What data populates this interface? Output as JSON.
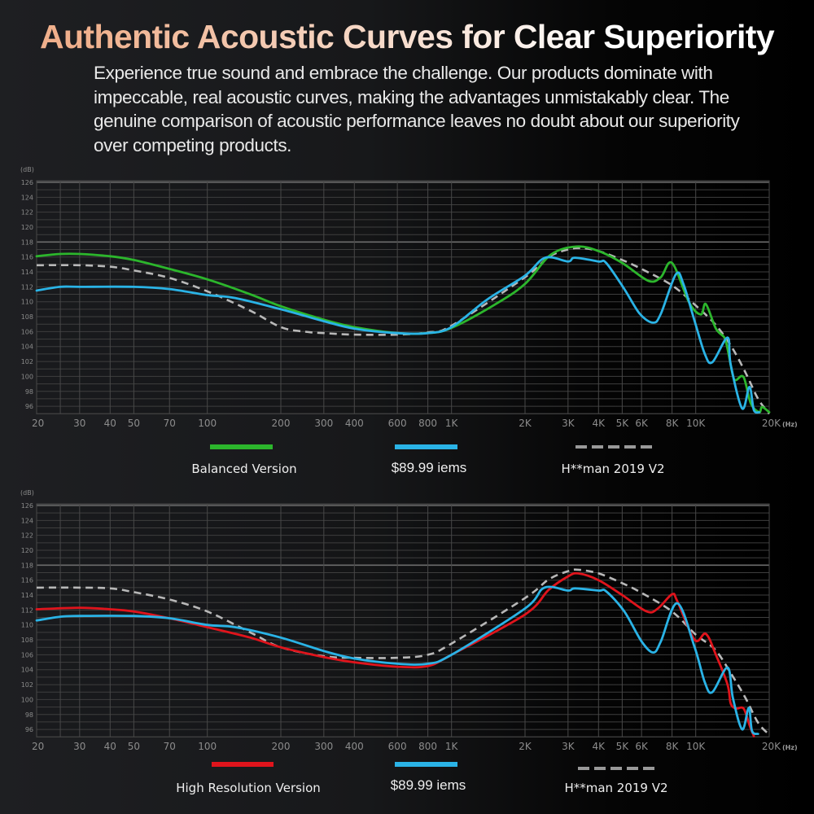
{
  "header": {
    "title": "Authentic Acoustic Curves for Clear Superiority",
    "description": "Experience true sound and embrace the challenge. Our products dominate with impeccable, real acoustic curves, making the advantages unmistakably clear. The genuine comparison of acoustic performance leaves no doubt about our superiority over competing products."
  },
  "chart_data": [
    {
      "type": "line",
      "xscale": "log",
      "xlim": [
        20,
        20000
      ],
      "ylim": [
        95,
        126
      ],
      "grid": true,
      "legend": "bottom",
      "ylabel": "(dB)",
      "xlabel": "(Hz)",
      "yticks": [
        "96",
        "98",
        "100",
        "102",
        "104",
        "106",
        "108",
        "110",
        "112",
        "114",
        "116",
        "118",
        "120",
        "122",
        "124",
        "126"
      ],
      "xticks": [
        {
          "v": 20,
          "l": "20"
        },
        {
          "v": 30,
          "l": "30"
        },
        {
          "v": 40,
          "l": "40"
        },
        {
          "v": 50,
          "l": "50"
        },
        {
          "v": 70,
          "l": "70"
        },
        {
          "v": 100,
          "l": "100"
        },
        {
          "v": 200,
          "l": "200"
        },
        {
          "v": 300,
          "l": "300"
        },
        {
          "v": 400,
          "l": "400"
        },
        {
          "v": 600,
          "l": "600"
        },
        {
          "v": 800,
          "l": "800"
        },
        {
          "v": 1000,
          "l": "1K"
        },
        {
          "v": 2000,
          "l": "2K"
        },
        {
          "v": 3000,
          "l": "3K"
        },
        {
          "v": 4000,
          "l": "4K"
        },
        {
          "v": 5000,
          "l": "5K"
        },
        {
          "v": 6000,
          "l": "6K"
        },
        {
          "v": 8000,
          "l": "8K"
        },
        {
          "v": 10000,
          "l": "10K"
        },
        {
          "v": 20000,
          "l": "20K"
        }
      ],
      "series": [
        {
          "name": "Balanced Version",
          "color": "#2cb62c",
          "dash": false,
          "x": [
            20,
            25,
            30,
            40,
            50,
            70,
            100,
            150,
            200,
            300,
            400,
            600,
            800,
            1000,
            1500,
            2000,
            2550,
            3250,
            4000,
            5000,
            6400,
            7200,
            8000,
            9400,
            10500,
            11000,
            12100,
            13100,
            13500,
            14200,
            14600,
            15700,
            16800,
            18200,
            18700,
            20000
          ],
          "y": [
            116.1,
            116.4,
            116.4,
            116.1,
            115.6,
            114.4,
            113.0,
            111.0,
            109.4,
            107.6,
            106.6,
            105.8,
            105.8,
            106.5,
            109.6,
            112.4,
            116.3,
            117.4,
            116.8,
            115.2,
            112.8,
            113.3,
            115.2,
            109.9,
            108.3,
            109.7,
            106.4,
            105.2,
            103.7,
            100.1,
            99.5,
            99.9,
            96.4,
            95.2,
            95.9,
            95.2
          ]
        },
        {
          "name": "$89.99 iems",
          "color": "#2ab3e6",
          "dash": false,
          "x": [
            20,
            25,
            30,
            50,
            70,
            100,
            130,
            200,
            300,
            400,
            600,
            800,
            1000,
            1400,
            2000,
            2420,
            3000,
            3200,
            4000,
            4300,
            5100,
            5900,
            6700,
            7200,
            8300,
            8900,
            9900,
            10900,
            11700,
            13500,
            13900,
            15500,
            16600,
            17300,
            18200
          ],
          "y": [
            111.5,
            112.0,
            112.0,
            112.0,
            111.7,
            110.9,
            110.5,
            109.0,
            107.4,
            106.4,
            105.8,
            105.8,
            106.6,
            110.3,
            113.5,
            115.9,
            115.4,
            115.9,
            115.4,
            115.2,
            111.7,
            108.4,
            107.2,
            108.4,
            113.7,
            112.4,
            107.4,
            103.0,
            101.9,
            105.2,
            101.6,
            95.7,
            98.6,
            95.5,
            95.2
          ]
        },
        {
          "name": "H**man 2019 V2",
          "color": "#b8b8b8",
          "dash": true,
          "x": [
            20,
            30,
            40,
            50,
            70,
            100,
            150,
            200,
            250,
            300,
            400,
            600,
            800,
            1000,
            2000,
            2500,
            3000,
            3400,
            4000,
            5000,
            6000,
            8000,
            10000,
            12000,
            14000,
            16000,
            18000,
            20000
          ],
          "y": [
            114.9,
            114.9,
            114.7,
            114.2,
            113.2,
            111.4,
            108.8,
            106.6,
            106.0,
            105.8,
            105.6,
            105.6,
            105.9,
            106.8,
            113.3,
            116.0,
            117.0,
            117.2,
            116.8,
            115.6,
            114.4,
            112.2,
            109.5,
            107.0,
            104.0,
            100.5,
            97.0,
            95.0
          ]
        }
      ]
    },
    {
      "type": "line",
      "xscale": "log",
      "xlim": [
        20,
        20000
      ],
      "ylim": [
        95,
        126
      ],
      "grid": true,
      "legend": "bottom",
      "ylabel": "(dB)",
      "xlabel": "(Hz)",
      "yticks": [
        "96",
        "98",
        "100",
        "102",
        "104",
        "106",
        "108",
        "110",
        "112",
        "114",
        "116",
        "118",
        "120",
        "122",
        "124",
        "126"
      ],
      "xticks": [
        {
          "v": 20,
          "l": "20"
        },
        {
          "v": 30,
          "l": "30"
        },
        {
          "v": 40,
          "l": "40"
        },
        {
          "v": 50,
          "l": "50"
        },
        {
          "v": 70,
          "l": "70"
        },
        {
          "v": 100,
          "l": "100"
        },
        {
          "v": 200,
          "l": "200"
        },
        {
          "v": 300,
          "l": "300"
        },
        {
          "v": 400,
          "l": "400"
        },
        {
          "v": 600,
          "l": "600"
        },
        {
          "v": 800,
          "l": "800"
        },
        {
          "v": 1000,
          "l": "1K"
        },
        {
          "v": 2000,
          "l": "2K"
        },
        {
          "v": 3000,
          "l": "3K"
        },
        {
          "v": 4000,
          "l": "4K"
        },
        {
          "v": 5000,
          "l": "5K"
        },
        {
          "v": 6000,
          "l": "6K"
        },
        {
          "v": 8000,
          "l": "8K"
        },
        {
          "v": 10000,
          "l": "10K"
        },
        {
          "v": 20000,
          "l": "20K"
        }
      ],
      "series": [
        {
          "name": "High Resolution Version",
          "color": "#e0141c",
          "dash": false,
          "x": [
            20,
            30,
            40,
            50,
            70,
            100,
            150,
            200,
            300,
            400,
            600,
            800,
            1000,
            2000,
            2500,
            3000,
            3300,
            4000,
            5000,
            6300,
            7000,
            8000,
            8400,
            9900,
            11000,
            12100,
            13500,
            13900,
            14600,
            15700,
            16600,
            17300
          ],
          "y": [
            112.1,
            112.3,
            112.1,
            111.8,
            110.9,
            109.7,
            108.3,
            107.0,
            105.7,
            105.0,
            104.4,
            104.5,
            106.0,
            111.4,
            114.7,
            116.5,
            116.9,
            116.0,
            114.0,
            111.8,
            112.2,
            114.1,
            113.2,
            108.0,
            108.8,
            106.0,
            102.0,
            99.5,
            98.8,
            98.8,
            96.6,
            95.1
          ]
        },
        {
          "name": "$89.99 iems",
          "color": "#2ab3e6",
          "dash": false,
          "x": [
            20,
            25,
            30,
            50,
            70,
            100,
            130,
            200,
            300,
            400,
            600,
            800,
            1000,
            2000,
            2400,
            3000,
            3200,
            4000,
            4300,
            5100,
            6000,
            6700,
            7200,
            8400,
            9900,
            10900,
            11700,
            13500,
            14200,
            15500,
            16500,
            17000,
            18000
          ],
          "y": [
            110.6,
            111.1,
            111.2,
            111.2,
            110.9,
            110.0,
            109.7,
            108.3,
            106.5,
            105.5,
            104.8,
            104.8,
            106.0,
            112.2,
            115.0,
            114.6,
            114.9,
            114.6,
            114.5,
            111.8,
            107.8,
            106.3,
            107.8,
            112.9,
            107.0,
            102.3,
            101.0,
            104.3,
            100.2,
            96.0,
            98.9,
            95.8,
            95.4
          ]
        },
        {
          "name": "H**man 2019 V2",
          "color": "#b8b8b8",
          "dash": true,
          "x": [
            20,
            30,
            40,
            50,
            70,
            100,
            150,
            200,
            300,
            400,
            600,
            800,
            1000,
            2000,
            2500,
            3000,
            3300,
            4000,
            5000,
            6000,
            8000,
            10000,
            12000,
            14000,
            16000,
            18000,
            20000
          ],
          "y": [
            115.0,
            115.0,
            114.9,
            114.4,
            113.4,
            111.8,
            109.0,
            107.0,
            105.8,
            105.6,
            105.6,
            106.0,
            107.5,
            113.6,
            116.1,
            117.2,
            117.4,
            116.9,
            115.6,
            114.3,
            111.8,
            108.7,
            106.7,
            103.4,
            100.2,
            96.9,
            95.3
          ]
        }
      ]
    }
  ]
}
